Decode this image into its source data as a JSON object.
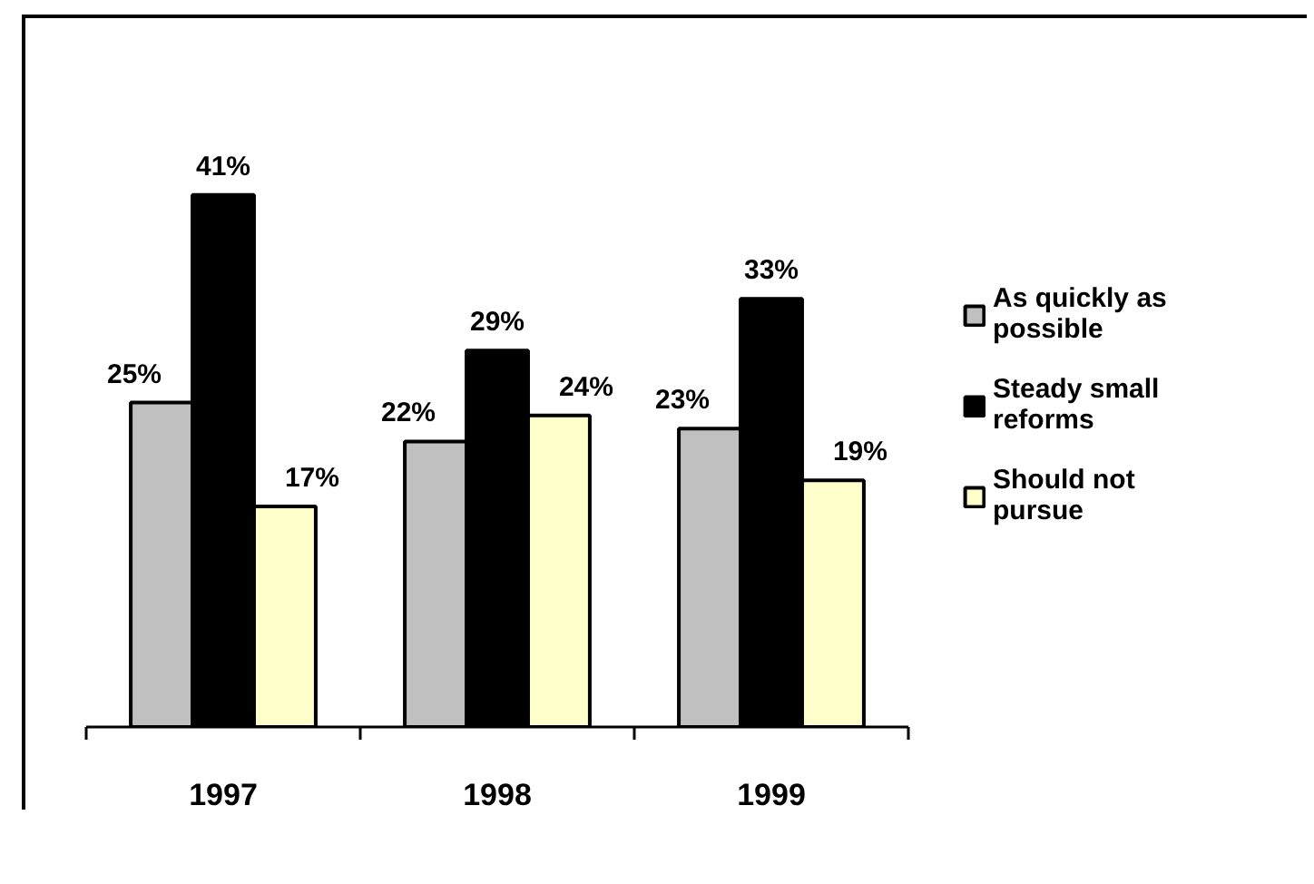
{
  "chart_data": {
    "type": "bar",
    "categories": [
      "1997",
      "1998",
      "1999"
    ],
    "series": [
      {
        "name": "As quickly as possible",
        "color": "#c0c0c0",
        "values": [
          25,
          22,
          23
        ],
        "value_labels": [
          "25%",
          "22%",
          "23%"
        ]
      },
      {
        "name": "Steady small reforms",
        "color": "#000000",
        "values": [
          41,
          29,
          33
        ],
        "value_labels": [
          "41%",
          "29%",
          "33%"
        ]
      },
      {
        "name": "Should not pursue",
        "color": "#ffffcc",
        "values": [
          17,
          24,
          19
        ],
        "value_labels": [
          "17%",
          "24%",
          "19%"
        ]
      }
    ],
    "legend": "right",
    "grid": false
  }
}
